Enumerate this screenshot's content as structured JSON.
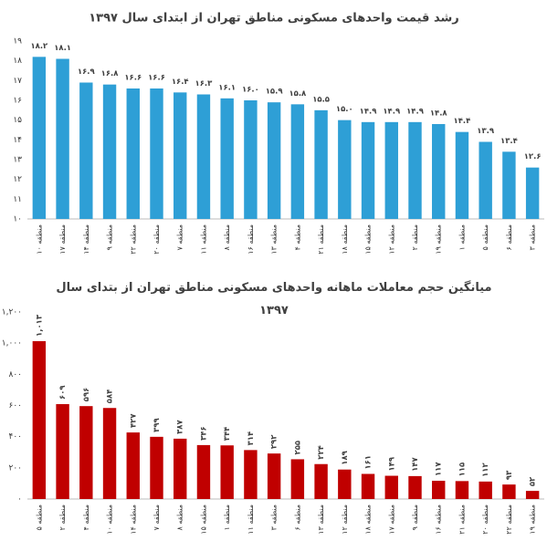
{
  "chart_data": [
    {
      "type": "bar",
      "title": "رشد قیمت واحدهای مسکونی مناطق تهران از ابتدای سال ۱۳۹۷",
      "categories": [
        "منطقه ۱۰",
        "منطقه ۱۷",
        "منطقه ۱۴",
        "منطقه ۹",
        "منطقه ۲۲",
        "منطقه ۲۰",
        "منطقه ۷",
        "منطقه ۱۱",
        "منطقه ۸",
        "منطقه ۱۶",
        "منطقه ۱۳",
        "منطقه ۴",
        "منطقه ۲۱",
        "منطقه ۱۸",
        "منطقه ۱۵",
        "منطقه ۱۲",
        "منطقه ۲",
        "منطقه ۱۹",
        "منطقه ۱",
        "منطقه ۵",
        "منطقه ۶",
        "منطقه ۳"
      ],
      "values": [
        18.2,
        18.1,
        16.9,
        16.8,
        16.6,
        16.6,
        16.4,
        16.3,
        16.1,
        16.0,
        15.9,
        15.8,
        15.5,
        15.0,
        14.9,
        14.9,
        14.9,
        14.8,
        14.4,
        13.9,
        13.4,
        12.6
      ],
      "value_labels": [
        "۱۸.۲",
        "۱۸.۱",
        "۱۶.۹",
        "۱۶.۸",
        "۱۶.۶",
        "۱۶.۶",
        "۱۶.۴",
        "۱۶.۳",
        "۱۶.۱",
        "۱۶.۰",
        "۱۵.۹",
        "۱۵.۸",
        "۱۵.۵",
        "۱۵.۰",
        "۱۴.۹",
        "۱۴.۹",
        "۱۴.۹",
        "۱۴.۸",
        "۱۴.۴",
        "۱۳.۹",
        "۱۳.۴",
        "۱۲.۶"
      ],
      "color": "#2e9fd6",
      "ylim": [
        10,
        19
      ],
      "yticks": [
        {
          "value": 10,
          "label": "۱۰"
        },
        {
          "value": 11,
          "label": "۱۱"
        },
        {
          "value": 12,
          "label": "۱۲"
        },
        {
          "value": 13,
          "label": "۱۳"
        },
        {
          "value": 14,
          "label": "۱۴"
        },
        {
          "value": 15,
          "label": "۱۵"
        },
        {
          "value": 16,
          "label": "۱۶"
        },
        {
          "value": 17,
          "label": "۱۷"
        },
        {
          "value": 18,
          "label": "۱۸"
        },
        {
          "value": 19,
          "label": "۱۹"
        }
      ],
      "grid": false
    },
    {
      "type": "bar",
      "title": "میانگین حجم معاملات ماهانه واحدهای مسکونی مناطق تهران از بتدای سال ۱۳۹۷",
      "categories": [
        "منطقه ۵",
        "منطقه ۲",
        "منطقه ۴",
        "منطقه ۱۰",
        "منطقه ۱۴",
        "منطقه ۷",
        "منطقه ۸",
        "منطقه ۱۵",
        "منطقه ۱",
        "منطقه ۱۱",
        "منطقه ۳",
        "منطقه ۶",
        "منطقه ۱۳",
        "منطقه ۱۲",
        "منطقه ۱۸",
        "منطقه ۱۷",
        "منطقه ۹",
        "منطقه ۱۶",
        "منطقه ۲۱",
        "منطقه ۲۰",
        "منطقه ۲۲",
        "منطقه ۱۹"
      ],
      "values": [
        1013,
        609,
        596,
        584,
        427,
        399,
        387,
        346,
        344,
        314,
        292,
        255,
        224,
        189,
        161,
        149,
        147,
        117,
        115,
        112,
        93,
        52
      ],
      "value_labels": [
        "۱,۰۱۳",
        "۶۰۹",
        "۵۹۶",
        "۵۸۴",
        "۴۲۷",
        "۳۹۹",
        "۳۸۷",
        "۳۴۶",
        "۳۴۴",
        "۳۱۴",
        "۲۹۲",
        "۲۵۵",
        "۲۲۴",
        "۱۸۹",
        "۱۶۱",
        "۱۴۹",
        "۱۴۷",
        "۱۱۷",
        "۱۱۵",
        "۱۱۲",
        "۹۳",
        "۵۲"
      ],
      "color": "#c00000",
      "ylim": [
        0,
        1200
      ],
      "yticks": [
        {
          "value": 0,
          "label": "۰"
        },
        {
          "value": 200,
          "label": "۲۰۰"
        },
        {
          "value": 400,
          "label": "۴۰۰"
        },
        {
          "value": 600,
          "label": "۶۰۰"
        },
        {
          "value": 800,
          "label": "۸۰۰"
        },
        {
          "value": 1000,
          "label": "۱,۰۰۰"
        },
        {
          "value": 1200,
          "label": "۱,۲۰۰"
        }
      ],
      "grid": false
    }
  ]
}
